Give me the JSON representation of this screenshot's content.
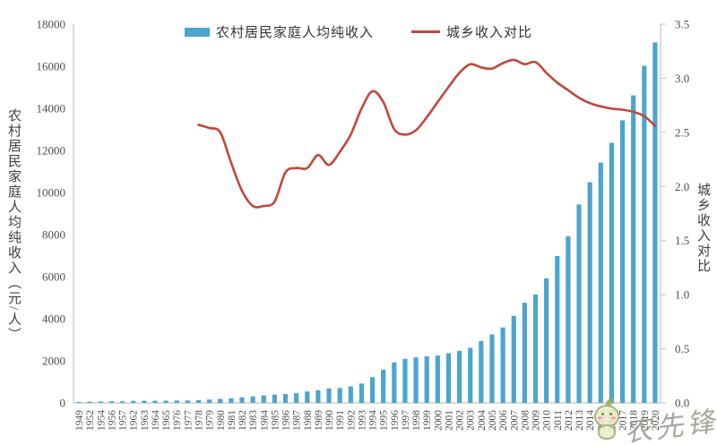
{
  "colors": {
    "bar": "#4BA5CF",
    "line": "#C2473A",
    "axis_line": "#C3C3C3",
    "tick_text": "#4D4D4D",
    "legend_text": "#333333",
    "watermark_text": "#98978C"
  },
  "watermark": {
    "text": "农先锋",
    "mascot_icon": "mascot-logo"
  },
  "chart_data": {
    "type": "combo-bar-line",
    "title": "",
    "grid": false,
    "legend_position": "top-center",
    "categories": [
      "1949",
      "1952",
      "1954",
      "1956",
      "1957",
      "1962",
      "1963",
      "1964",
      "1965",
      "1976",
      "1977",
      "1978",
      "1979",
      "1980",
      "1981",
      "1982",
      "1983",
      "1984",
      "1985",
      "1986",
      "1987",
      "1988",
      "1989",
      "1990",
      "1991",
      "1992",
      "1993",
      "1994",
      "1995",
      "1996",
      "1997",
      "1998",
      "1999",
      "2000",
      "2001",
      "2002",
      "2003",
      "2004",
      "2005",
      "2006",
      "2007",
      "2008",
      "2009",
      "2010",
      "2011",
      "2012",
      "2013",
      "2014",
      "2015",
      "2016",
      "2017",
      "2018",
      "2019",
      "2020"
    ],
    "left_axis": {
      "title": "农村居民家庭人均纯收入（元/人）",
      "range": [
        0,
        18000
      ],
      "ticks": [
        "0",
        "2000",
        "4000",
        "6000",
        "8000",
        "10000",
        "12000",
        "14000",
        "16000",
        "18000"
      ]
    },
    "right_axis": {
      "title": "城乡收入对比",
      "range": [
        0,
        3.5
      ],
      "ticks": [
        "0.0",
        "0.5",
        "1.0",
        "1.5",
        "2.0",
        "2.5",
        "3.0",
        "3.5"
      ]
    },
    "series": [
      {
        "name": "农村居民家庭人均纯收入",
        "type": "bar",
        "axis": "left",
        "values": [
          44,
          57,
          64,
          73,
          73,
          99,
          102,
          102,
          107,
          113,
          117,
          134,
          160,
          191,
          223,
          270,
          310,
          355,
          398,
          424,
          463,
          545,
          602,
          686,
          709,
          784,
          922,
          1221,
          1578,
          1926,
          2090,
          2162,
          2210,
          2253,
          2366,
          2476,
          2622,
          2936,
          3255,
          3587,
          4140,
          4761,
          5153,
          5919,
          6977,
          7917,
          9430,
          10489,
          11422,
          12363,
          13432,
          14617,
          16021,
          17131
        ]
      },
      {
        "name": "城乡收入对比",
        "type": "line",
        "axis": "right",
        "values": [
          null,
          null,
          null,
          null,
          null,
          null,
          null,
          null,
          null,
          null,
          null,
          2.57,
          2.54,
          2.5,
          2.22,
          1.96,
          1.82,
          1.82,
          1.86,
          2.13,
          2.17,
          2.17,
          2.29,
          2.2,
          2.32,
          2.48,
          2.72,
          2.88,
          2.78,
          2.53,
          2.48,
          2.52,
          2.64,
          2.78,
          2.92,
          3.05,
          3.13,
          3.1,
          3.09,
          3.14,
          3.17,
          3.13,
          3.15,
          3.05,
          2.96,
          2.89,
          2.82,
          2.77,
          2.74,
          2.72,
          2.71,
          2.69,
          2.65,
          2.56
        ]
      }
    ]
  }
}
